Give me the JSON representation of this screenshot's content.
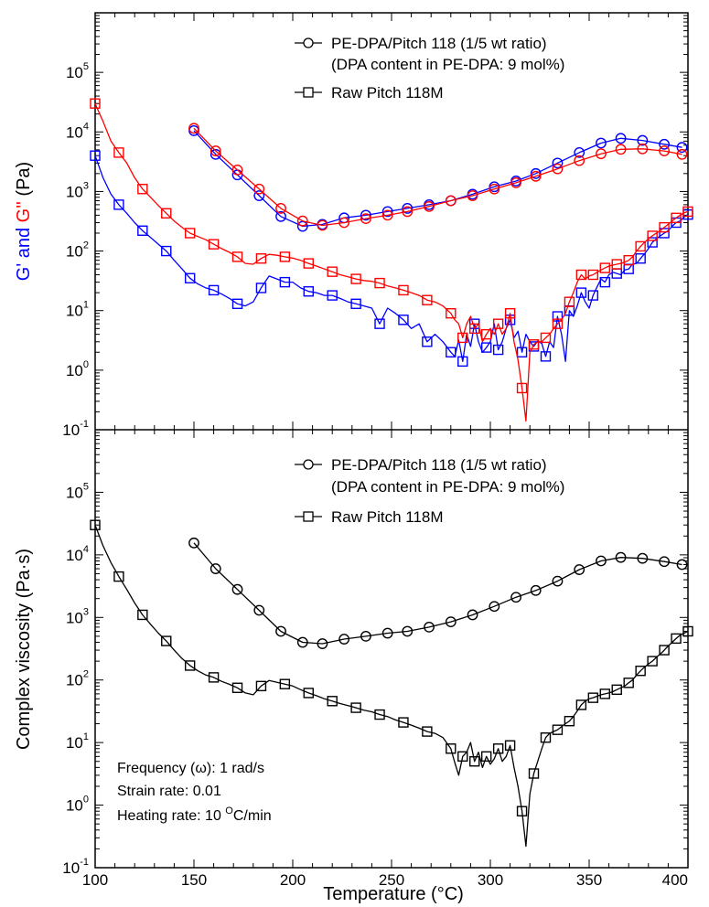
{
  "chart_data": [
    {
      "type": "line",
      "panel": "top",
      "ylabel_parts": [
        "G' and ",
        "G''",
        " (Pa)"
      ],
      "ylabel_colors": [
        "#0000ff",
        "#ff0000",
        "#000000"
      ],
      "yscale": "log",
      "ylim": [
        0.1,
        1000000
      ],
      "ytick_values": [
        0.1,
        1,
        10,
        100,
        1000,
        10000,
        100000
      ],
      "ytick_base": "10",
      "ytick_exponents": [
        "-1",
        "0",
        "1",
        "2",
        "3",
        "4",
        "5"
      ],
      "xlim": [
        100,
        400
      ],
      "legend_position": "top-right",
      "legend": [
        {
          "label": "PE-DPA/Pitch 118 (1/5 wt ratio)",
          "label2": "(DPA content in PE-DPA: 9 mol%)",
          "marker": "circle"
        },
        {
          "label": "Raw Pitch 118M",
          "marker": "square"
        }
      ],
      "series": [
        {
          "sample": "PE-DPA/Pitch 118",
          "quantity": "G'",
          "color": "#0000ff",
          "marker": "circle",
          "x": [
            150,
            161,
            172,
            183,
            194,
            205,
            215,
            226,
            237,
            248,
            258,
            269,
            280,
            291,
            302,
            313,
            323,
            334,
            345,
            356,
            366,
            377,
            388,
            397
          ],
          "y": [
            10500,
            4200,
            1900,
            850,
            380,
            260,
            280,
            360,
            400,
            460,
            520,
            600,
            700,
            900,
            1200,
            1500,
            2000,
            3000,
            4500,
            6500,
            7800,
            7200,
            6200,
            5500
          ]
        },
        {
          "sample": "PE-DPA/Pitch 118",
          "quantity": "G''",
          "color": "#ff0000",
          "marker": "circle",
          "x": [
            150,
            161,
            172,
            183,
            194,
            205,
            215,
            226,
            237,
            248,
            258,
            269,
            280,
            291,
            302,
            313,
            323,
            334,
            345,
            356,
            366,
            377,
            388,
            397
          ],
          "y": [
            11500,
            4800,
            2300,
            1100,
            520,
            320,
            270,
            300,
            350,
            400,
            460,
            560,
            700,
            850,
            1100,
            1400,
            1800,
            2400,
            3300,
            4300,
            5100,
            5200,
            4800,
            4200
          ]
        },
        {
          "sample": "Raw Pitch 118M",
          "quantity": "G'",
          "color": "#0000ff",
          "marker": "square",
          "x": [
            100,
            104,
            108,
            112,
            116,
            120,
            124,
            128,
            132,
            136,
            140,
            144,
            148,
            152,
            156,
            160,
            164,
            168,
            172,
            176,
            180,
            184,
            188,
            192,
            196,
            200,
            204,
            208,
            212,
            216,
            220,
            224,
            228,
            232,
            236,
            240,
            244,
            248,
            252,
            256,
            260,
            264,
            268,
            272,
            276,
            280,
            282,
            284,
            286,
            288,
            290,
            292,
            294,
            296,
            298,
            300,
            302,
            304,
            306,
            308,
            310,
            312,
            314,
            316,
            318,
            320,
            322,
            324,
            326,
            328,
            330,
            332,
            334,
            336,
            338,
            340,
            342,
            344,
            346,
            348,
            350,
            352,
            354,
            356,
            358,
            360,
            362,
            364,
            366,
            368,
            370,
            372,
            374,
            376,
            378,
            380,
            382,
            384,
            386,
            388,
            390,
            392,
            394,
            396,
            398,
            400
          ],
          "y": [
            4000,
            1700,
            900,
            600,
            430,
            300,
            220,
            170,
            130,
            100,
            70,
            50,
            35,
            28,
            24,
            22,
            19,
            16,
            13,
            12,
            14,
            24,
            38,
            34,
            30,
            30,
            24,
            21,
            20,
            18,
            18,
            16,
            14,
            13,
            12,
            11,
            6,
            11,
            9,
            7,
            5,
            6,
            3,
            4,
            3,
            2,
            1.7,
            3.2,
            1.4,
            4,
            2.5,
            6,
            3,
            2,
            2.4,
            3,
            6,
            2.2,
            3,
            5,
            7,
            3.5,
            4.5,
            2,
            4,
            3,
            2.5,
            3.1,
            2.8,
            1.7,
            3,
            2.4,
            8,
            4,
            1.4,
            10,
            8,
            12,
            20,
            14,
            11,
            18,
            25,
            34,
            30,
            40,
            44,
            42,
            40,
            48,
            50,
            60,
            62,
            75,
            90,
            110,
            140,
            160,
            180,
            200,
            220,
            260,
            300,
            320,
            370,
            410
          ]
        },
        {
          "sample": "Raw Pitch 118M",
          "quantity": "G''",
          "color": "#ff0000",
          "marker": "square",
          "x": [
            100,
            104,
            108,
            112,
            116,
            120,
            124,
            128,
            132,
            136,
            140,
            144,
            148,
            152,
            156,
            160,
            164,
            168,
            172,
            176,
            180,
            184,
            188,
            192,
            196,
            200,
            204,
            208,
            212,
            216,
            220,
            224,
            228,
            232,
            236,
            240,
            244,
            248,
            252,
            256,
            260,
            264,
            268,
            272,
            276,
            280,
            282,
            284,
            286,
            288,
            290,
            292,
            294,
            296,
            298,
            300,
            302,
            304,
            306,
            308,
            310,
            312,
            314,
            316,
            318,
            320,
            322,
            324,
            326,
            328,
            330,
            332,
            334,
            336,
            338,
            340,
            342,
            344,
            346,
            348,
            350,
            352,
            354,
            356,
            358,
            360,
            362,
            364,
            366,
            368,
            370,
            372,
            374,
            376,
            378,
            380,
            382,
            384,
            386,
            388,
            390,
            392,
            394,
            396,
            398,
            400
          ],
          "y": [
            30000,
            15000,
            7000,
            4500,
            3000,
            1700,
            1100,
            800,
            580,
            430,
            320,
            250,
            200,
            175,
            155,
            130,
            110,
            95,
            80,
            62,
            60,
            75,
            88,
            85,
            80,
            76,
            70,
            62,
            56,
            50,
            45,
            40,
            37,
            34,
            32,
            31,
            29,
            26,
            24,
            22,
            20,
            18,
            15,
            14,
            12,
            9,
            7,
            6,
            3.5,
            6,
            8,
            5,
            6,
            3,
            4,
            5,
            4,
            6,
            4,
            5,
            9,
            3,
            1.5,
            0.5,
            0.14,
            2,
            2.7,
            3,
            3,
            3.5,
            4,
            5,
            6,
            7,
            9,
            14,
            20,
            30,
            40,
            34,
            38,
            40,
            44,
            48,
            52,
            56,
            58,
            60,
            62,
            65,
            70,
            80,
            100,
            120,
            140,
            160,
            180,
            200,
            220,
            250,
            280,
            320,
            360,
            400,
            440,
            460
          ]
        }
      ]
    },
    {
      "type": "line",
      "panel": "bottom",
      "ylabel": "Complex viscosity (Pa·s)",
      "xlabel": "Temperature (°C)",
      "yscale": "log",
      "ylim": [
        0.1,
        1000000
      ],
      "ytick_values": [
        0.1,
        1,
        10,
        100,
        1000,
        10000,
        100000
      ],
      "ytick_base": "10",
      "ytick_exponents": [
        "-1",
        "0",
        "1",
        "2",
        "3",
        "4",
        "5"
      ],
      "xlim": [
        100,
        400
      ],
      "xtick_values": [
        100,
        150,
        200,
        250,
        300,
        350,
        400
      ],
      "xtick_labels": [
        "100",
        "150",
        "200",
        "250",
        "300",
        "350",
        "400"
      ],
      "legend_position": "top-right",
      "legend": [
        {
          "label": "PE-DPA/Pitch 118 (1/5 wt ratio)",
          "label2": "(DPA content in PE-DPA: 9 mol%)",
          "marker": "circle"
        },
        {
          "label": "Raw Pitch 118M",
          "marker": "square"
        }
      ],
      "annotations": {
        "frequency": "Frequency (ω): 1 rad/s",
        "strain": "Strain rate: 0.01",
        "heating_prefix": "Heating rate: 10 ",
        "heating_superscript": "O",
        "heating_suffix": "C/min"
      },
      "series": [
        {
          "sample": "PE-DPA/Pitch 118",
          "quantity": "complex viscosity",
          "color": "#000000",
          "marker": "circle",
          "x": [
            150,
            161,
            172,
            183,
            194,
            205,
            215,
            226,
            237,
            248,
            258,
            269,
            280,
            291,
            302,
            313,
            323,
            334,
            345,
            356,
            366,
            377,
            388,
            397
          ],
          "y": [
            15500,
            6000,
            2800,
            1300,
            600,
            400,
            380,
            450,
            500,
            560,
            600,
            700,
            850,
            1100,
            1500,
            2100,
            2700,
            3800,
            5800,
            8000,
            9100,
            8800,
            7800,
            7000
          ]
        },
        {
          "sample": "Raw Pitch 118M",
          "quantity": "complex viscosity",
          "color": "#000000",
          "marker": "square",
          "x": [
            100,
            104,
            108,
            112,
            116,
            120,
            124,
            128,
            132,
            136,
            140,
            144,
            148,
            152,
            156,
            160,
            164,
            168,
            172,
            176,
            180,
            184,
            188,
            192,
            196,
            200,
            204,
            208,
            212,
            216,
            220,
            224,
            228,
            232,
            236,
            240,
            244,
            248,
            252,
            256,
            260,
            264,
            268,
            272,
            276,
            280,
            282,
            284,
            286,
            288,
            290,
            292,
            294,
            296,
            298,
            300,
            302,
            304,
            306,
            308,
            310,
            312,
            314,
            316,
            318,
            320,
            322,
            324,
            326,
            328,
            330,
            332,
            334,
            336,
            338,
            340,
            342,
            344,
            346,
            348,
            350,
            352,
            354,
            356,
            358,
            360,
            362,
            364,
            366,
            368,
            370,
            372,
            374,
            376,
            378,
            380,
            382,
            384,
            386,
            388,
            390,
            392,
            394,
            396,
            398,
            400
          ],
          "y": [
            30000,
            14000,
            7500,
            4500,
            2800,
            1700,
            1100,
            780,
            560,
            420,
            300,
            220,
            170,
            140,
            120,
            110,
            95,
            85,
            75,
            62,
            58,
            80,
            98,
            92,
            86,
            80,
            70,
            62,
            56,
            50,
            46,
            42,
            39,
            36,
            33,
            31,
            28,
            26,
            23,
            21,
            19,
            17,
            15,
            14,
            12,
            8,
            4.8,
            3,
            6,
            7,
            10,
            5,
            7,
            4,
            6,
            4.5,
            5.5,
            8,
            5,
            6,
            9,
            4,
            2,
            0.8,
            0.22,
            1.5,
            3.2,
            5,
            8,
            12,
            14,
            15,
            16,
            18,
            20,
            22,
            26,
            32,
            40,
            46,
            50,
            52,
            55,
            58,
            60,
            62,
            65,
            70,
            75,
            80,
            90,
            100,
            120,
            140,
            160,
            180,
            200,
            230,
            260,
            300,
            350,
            400,
            460,
            520,
            560,
            600
          ]
        }
      ]
    }
  ]
}
